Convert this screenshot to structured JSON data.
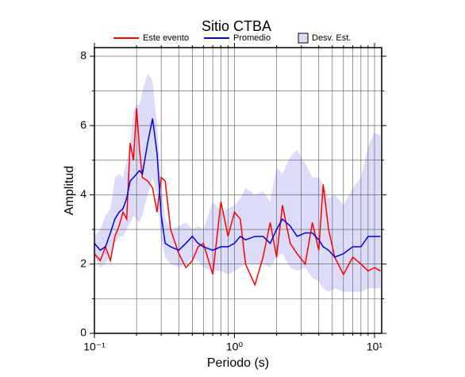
{
  "chart_data": {
    "type": "line",
    "title": "Sitio CTBA",
    "xlabel": "Periodo (s)",
    "ylabel": "Amplitud",
    "xscale": "log",
    "xlim": [
      0.1,
      11.25
    ],
    "ylim": [
      0,
      8.25
    ],
    "xticks": [
      {
        "value": 0.1,
        "label": "10⁻¹"
      },
      {
        "value": 1,
        "label": "10⁰"
      },
      {
        "value": 10,
        "label": "10¹"
      }
    ],
    "xminor": [
      0.2,
      0.3,
      0.4,
      0.5,
      0.6,
      0.7,
      0.8,
      0.9,
      2,
      3,
      4,
      5,
      6,
      7,
      8,
      9
    ],
    "yticks": [
      0,
      2,
      4,
      6,
      8
    ],
    "yminor": [
      1,
      3,
      5,
      7
    ],
    "grid": true,
    "legend": "top",
    "x": [
      0.1,
      0.11,
      0.12,
      0.13,
      0.14,
      0.15,
      0.16,
      0.17,
      0.18,
      0.19,
      0.2,
      0.21,
      0.22,
      0.24,
      0.26,
      0.28,
      0.3,
      0.32,
      0.35,
      0.4,
      0.45,
      0.5,
      0.55,
      0.6,
      0.7,
      0.8,
      0.9,
      1.0,
      1.1,
      1.2,
      1.4,
      1.6,
      1.8,
      2.0,
      2.2,
      2.5,
      2.8,
      3.2,
      3.6,
      4.0,
      4.3,
      4.7,
      5.2,
      6,
      7,
      8,
      9,
      10,
      11
    ],
    "series": [
      {
        "name": "Este evento",
        "color": "#ff0000",
        "values": [
          2.3,
          2.1,
          2.5,
          2.1,
          2.8,
          3.1,
          3.5,
          3.3,
          5.5,
          5.0,
          6.5,
          5.3,
          4.5,
          4.4,
          4.2,
          3.5,
          4.5,
          4.4,
          3.0,
          2.3,
          1.9,
          2.1,
          2.5,
          2.6,
          1.7,
          3.8,
          2.8,
          3.5,
          3.3,
          2.0,
          1.4,
          2.2,
          3.2,
          2.2,
          3.7,
          2.6,
          2.3,
          2.0,
          3.2,
          2.4,
          4.3,
          3.0,
          2.2,
          1.7,
          2.2,
          2.0,
          1.8,
          1.9,
          1.8
        ]
      },
      {
        "name": "Promedio",
        "color": "#0000dd",
        "values": [
          2.6,
          2.4,
          2.5,
          2.9,
          3.3,
          3.5,
          3.6,
          3.9,
          4.4,
          4.5,
          4.6,
          4.7,
          4.6,
          5.5,
          6.2,
          5.2,
          3.4,
          2.6,
          2.5,
          2.4,
          2.6,
          2.8,
          2.6,
          2.5,
          2.4,
          2.5,
          2.5,
          2.6,
          2.8,
          2.7,
          2.8,
          2.8,
          2.6,
          3.0,
          3.3,
          3.1,
          2.8,
          2.9,
          2.9,
          2.7,
          2.5,
          2.4,
          2.2,
          2.3,
          2.5,
          2.5,
          2.8,
          2.8,
          2.8
        ]
      }
    ],
    "band": {
      "name": "Desv. Est.",
      "color": "#dcdcf8",
      "upper": [
        2.8,
        3.0,
        3.4,
        3.6,
        4.5,
        4.6,
        4.5,
        5.0,
        5.5,
        6.4,
        6.6,
        6.6,
        7.0,
        7.5,
        7.3,
        6.0,
        4.3,
        3.3,
        3.0,
        3.1,
        3.2,
        3.0,
        3.1,
        3.0,
        3.8,
        3.5,
        3.6,
        3.7,
        3.9,
        4.2,
        4.0,
        4.1,
        3.8,
        4.8,
        4.6,
        5.1,
        5.3,
        4.9,
        4.5,
        4.5,
        4.3,
        3.9,
        4.0,
        3.7,
        4.2,
        4.5,
        5.4,
        5.8,
        5.7
      ],
      "lower": [
        2.2,
        1.9,
        2.0,
        2.3,
        2.6,
        2.8,
        2.8,
        3.0,
        3.2,
        3.4,
        3.3,
        3.2,
        3.4,
        4.0,
        4.5,
        4.0,
        2.7,
        2.2,
        2.0,
        1.9,
        2.0,
        2.2,
        2.1,
        1.9,
        1.8,
        1.8,
        1.7,
        1.8,
        1.9,
        2.0,
        2.0,
        2.0,
        1.9,
        2.2,
        2.3,
        1.9,
        1.8,
        1.9,
        1.6,
        1.5,
        1.3,
        1.2,
        1.3,
        1.2,
        1.2,
        1.2,
        1.3,
        1.3,
        1.3
      ]
    }
  }
}
